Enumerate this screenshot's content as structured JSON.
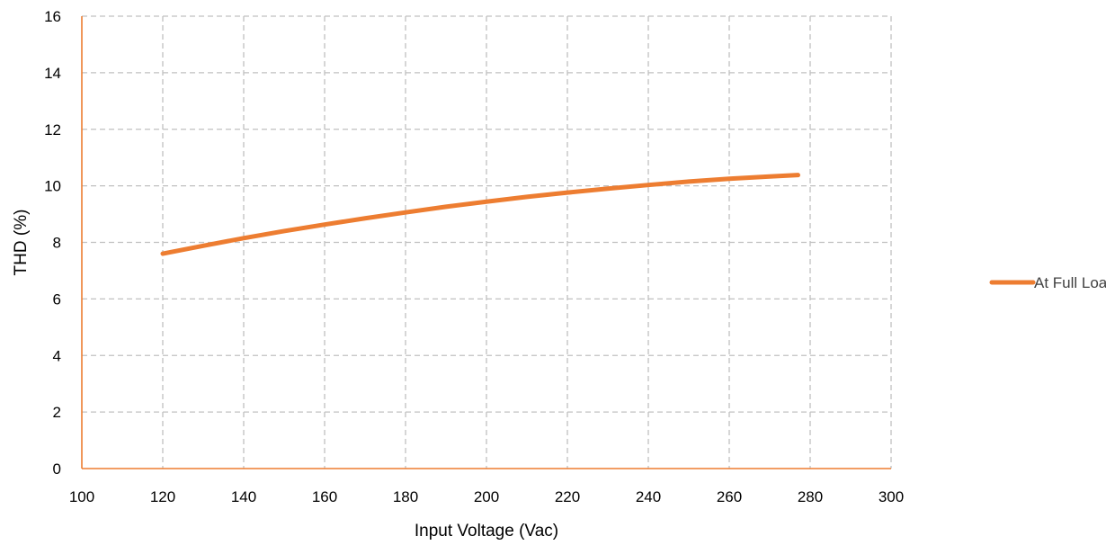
{
  "chart_data": {
    "type": "line",
    "title": "",
    "xlabel": "Input Voltage (Vac)",
    "ylabel": "THD (%)",
    "xlim": [
      100,
      300
    ],
    "ylim": [
      0,
      16
    ],
    "x_ticks": [
      100,
      120,
      140,
      160,
      180,
      200,
      220,
      240,
      260,
      280,
      300
    ],
    "y_ticks": [
      0,
      2,
      4,
      6,
      8,
      10,
      12,
      14,
      16
    ],
    "grid": true,
    "grid_style": "dashed",
    "legend_position": "right",
    "axis_color": "#ED7D31",
    "series": [
      {
        "name": "At Full Load",
        "color": "#ED7D31",
        "x": [
          120,
          130,
          140,
          150,
          160,
          170,
          180,
          190,
          200,
          210,
          220,
          230,
          240,
          250,
          260,
          270,
          277
        ],
        "y": [
          7.6,
          7.88,
          8.15,
          8.4,
          8.63,
          8.85,
          9.06,
          9.26,
          9.44,
          9.61,
          9.76,
          9.9,
          10.03,
          10.15,
          10.25,
          10.33,
          10.38
        ]
      }
    ]
  }
}
